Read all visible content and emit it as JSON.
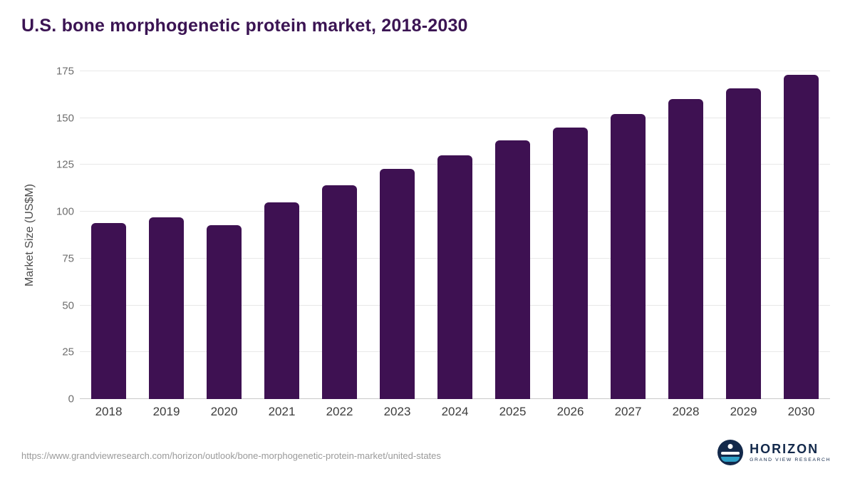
{
  "title": "U.S. bone morphogenetic protein market, 2018-2030",
  "colors": {
    "bar": "#3e1152",
    "title": "#3b1453",
    "gridline": "#e8e8e8",
    "logo_navy": "#13294b",
    "logo_teal": "#2e9fc6"
  },
  "chart_data": {
    "type": "bar",
    "categories": [
      "2018",
      "2019",
      "2020",
      "2021",
      "2022",
      "2023",
      "2024",
      "2025",
      "2026",
      "2027",
      "2028",
      "2029",
      "2030"
    ],
    "values": [
      94,
      97,
      93,
      105,
      114,
      123,
      130,
      138,
      145,
      152,
      160,
      166,
      173
    ],
    "title": "U.S. bone morphogenetic protein market, 2018-2030",
    "xlabel": "",
    "ylabel": "Market Size (US$M)",
    "ylim": [
      0,
      175
    ],
    "yticks": [
      0,
      25,
      50,
      75,
      100,
      125,
      150,
      175
    ],
    "grid": true,
    "legend": "none",
    "bar_color": "#3e1152"
  },
  "footer": {
    "source_url": "https://www.grandviewresearch.com/horizon/outlook/bone-morphogenetic-protein-market/united-states"
  },
  "logo": {
    "name": "HORIZON",
    "subtitle": "GRAND VIEW RESEARCH"
  }
}
